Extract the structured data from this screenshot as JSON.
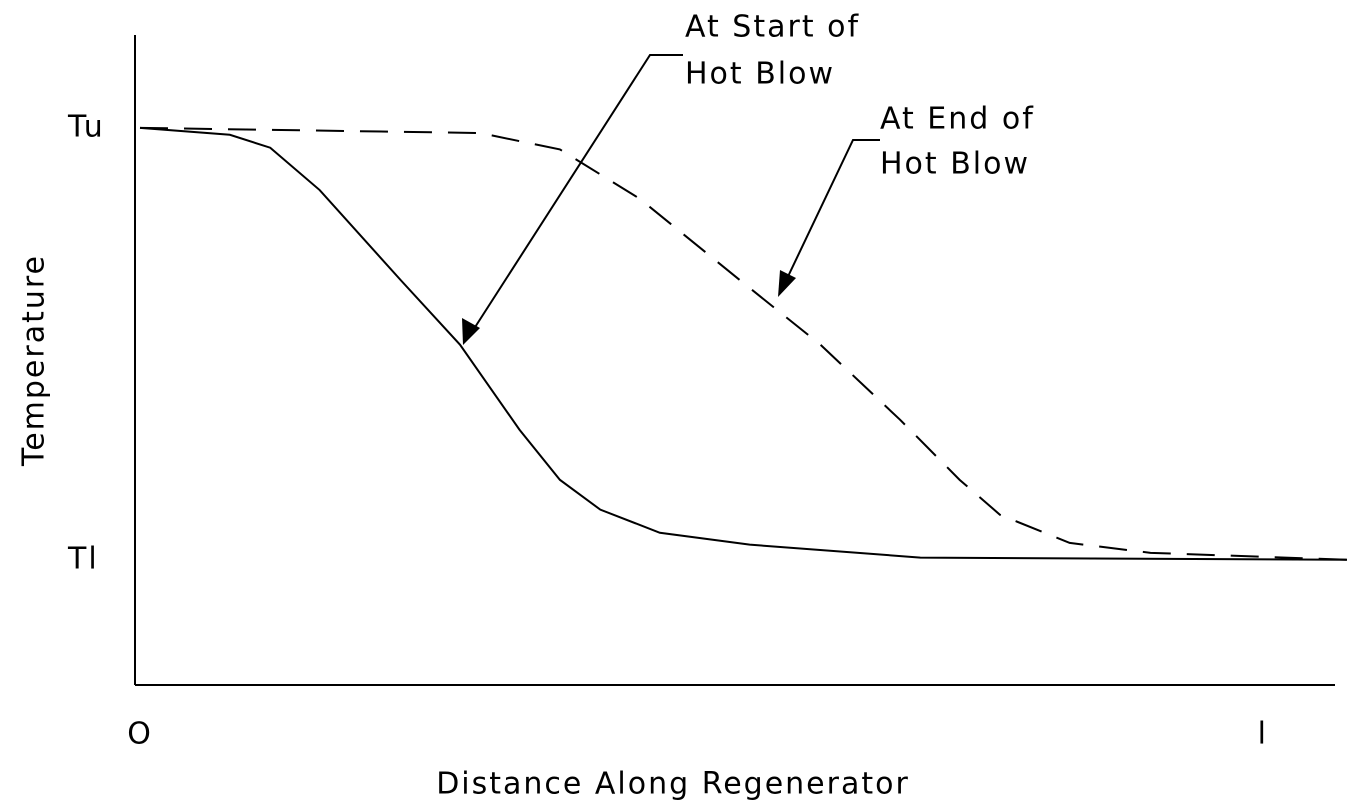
{
  "chart_data": {
    "type": "line",
    "x_label": "Distance Along Regenerator",
    "y_label": "Temperature",
    "xlim": [
      0,
      1.075
    ],
    "ylim": [
      -0.29,
      1.215
    ],
    "xticks": [
      {
        "value": 0,
        "label": "O"
      },
      {
        "value": 1,
        "label": "l"
      }
    ],
    "yticks": [
      {
        "value": 1,
        "label": "Tu"
      },
      {
        "value": 0,
        "label": "Tl"
      }
    ],
    "series": [
      {
        "color": "#000000",
        "dash": false,
        "x": [
          0,
          0.08,
          0.116,
          0.16,
          0.232,
          0.285,
          0.338,
          0.374,
          0.41,
          0.463,
          0.543,
          0.695,
          1.075
        ],
        "values": [
          1,
          0.984,
          0.954,
          0.856,
          0.648,
          0.498,
          0.301,
          0.185,
          0.116,
          0.0625,
          0.035,
          0.005,
          0
        ]
      },
      {
        "color": "#000000",
        "dash": true,
        "x": [
          0,
          0.303,
          0.374,
          0.445,
          0.534,
          0.606,
          0.677,
          0.73,
          0.766,
          0.828,
          0.9,
          1.075
        ],
        "values": [
          1,
          0.988,
          0.95,
          0.836,
          0.648,
          0.498,
          0.324,
          0.185,
          0.104,
          0.039,
          0.016,
          0
        ]
      }
    ],
    "annotations": [
      {
        "lines": [
          "At Start of",
          "Hot Blow"
        ]
      },
      {
        "lines": [
          "At End of",
          "Hot Blow"
        ]
      }
    ]
  }
}
